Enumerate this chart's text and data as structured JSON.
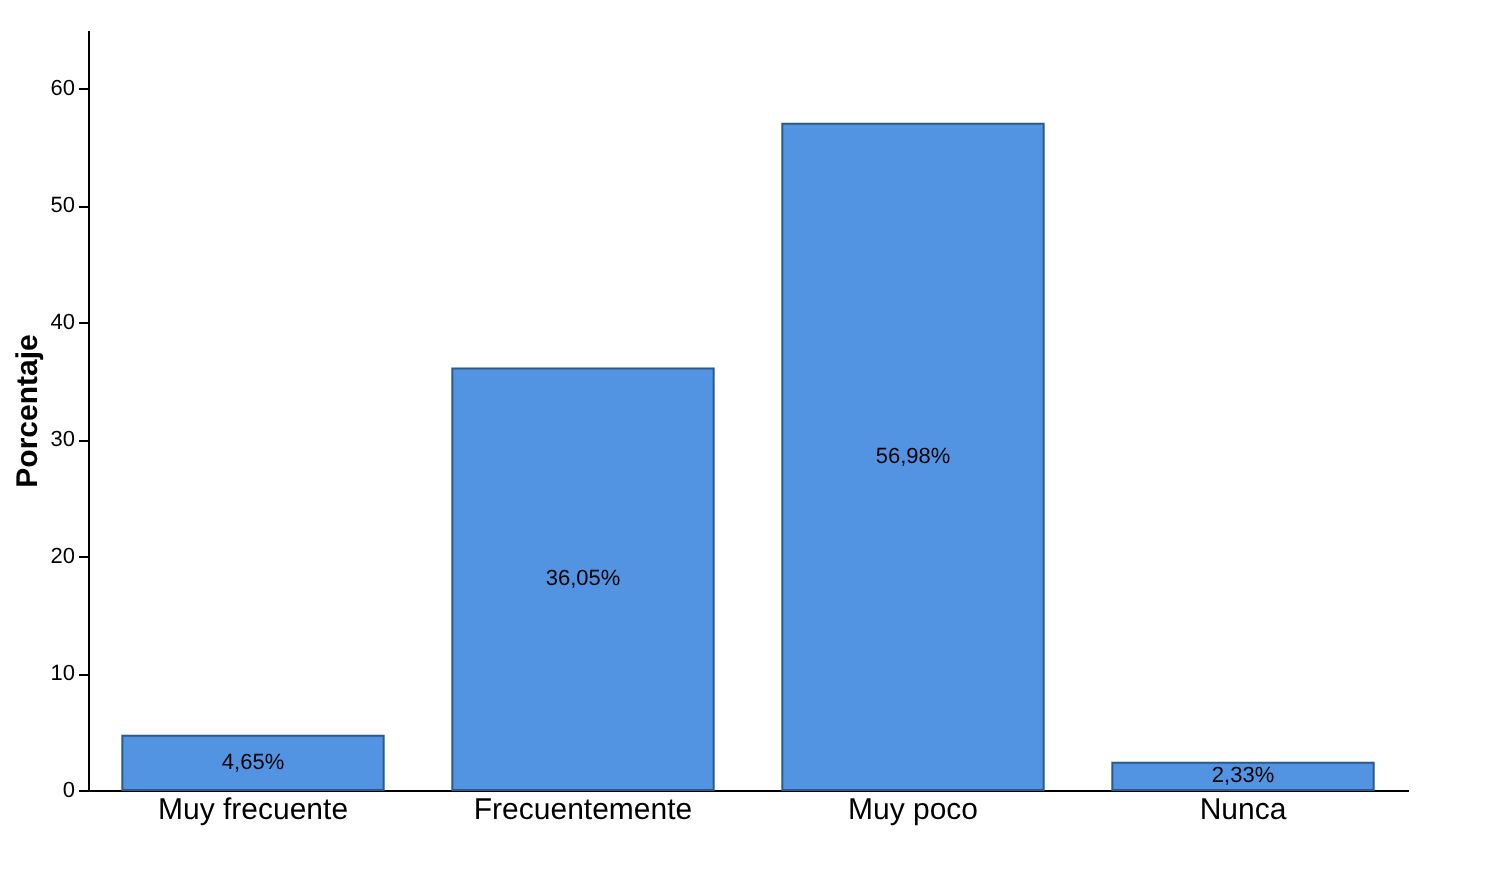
{
  "chart_data": {
    "type": "bar",
    "ylabel": "Porcentaje",
    "categories": [
      "Muy frecuente",
      "Frecuentemente",
      "Muy poco",
      "Nunca"
    ],
    "values": [
      4.65,
      36.05,
      56.98,
      2.33
    ],
    "value_labels": [
      "4,65%",
      "36,05%",
      "56,98%",
      "2,33%"
    ],
    "color": "#5294e2",
    "ylim": [
      0,
      65
    ],
    "yticks": [
      0,
      10,
      20,
      30,
      40,
      50,
      60
    ],
    "grid": false
  }
}
